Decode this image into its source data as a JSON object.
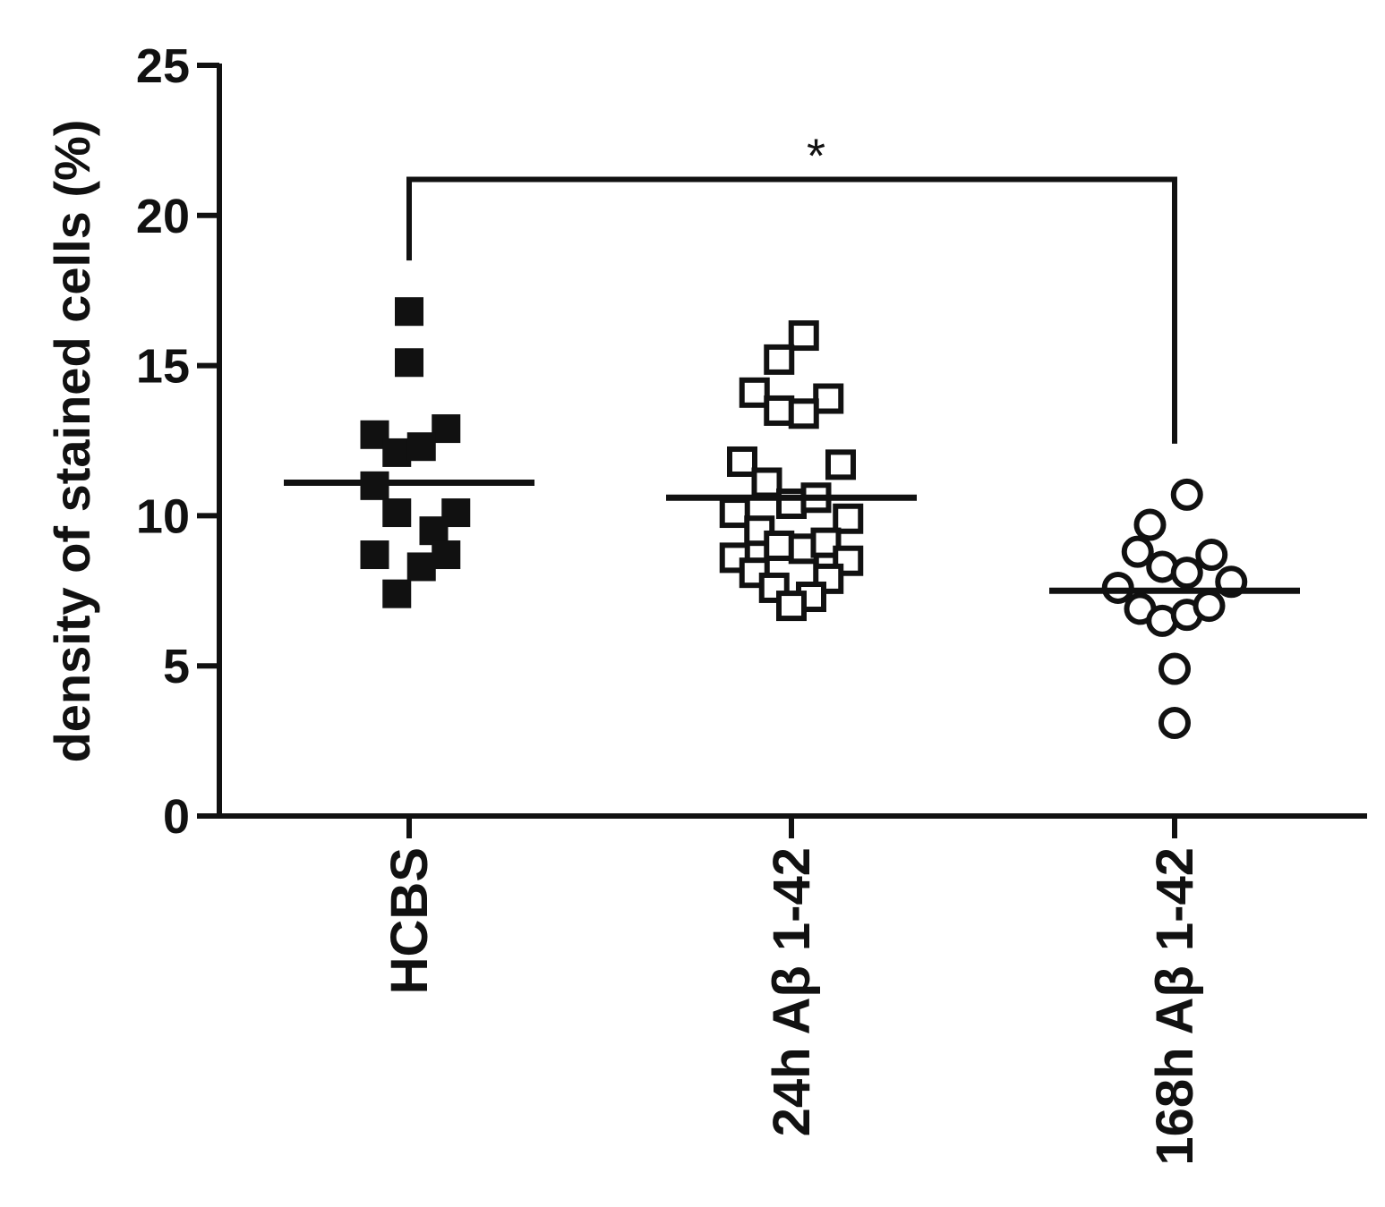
{
  "chart_data": {
    "type": "scatter",
    "title": "",
    "xlabel": "",
    "ylabel": "density of stained cells (%)",
    "ylim": [
      0,
      25
    ],
    "yticks": [
      "0",
      "5",
      "10",
      "15",
      "20",
      "25"
    ],
    "categories": [
      "HCBS",
      "24h Aβ 1-42",
      "168h Aβ 1-42"
    ],
    "series": [
      {
        "category": "HCBS",
        "marker": "filled-square",
        "mean": 11.1,
        "points": [
          {
            "offset": 0.0,
            "y": 16.8
          },
          {
            "offset": 0.0,
            "y": 15.1
          },
          {
            "offset": -0.7,
            "y": 12.7
          },
          {
            "offset": 0.75,
            "y": 12.9
          },
          {
            "offset": -0.25,
            "y": 12.1
          },
          {
            "offset": 0.25,
            "y": 12.3
          },
          {
            "offset": -0.7,
            "y": 11.0
          },
          {
            "offset": -0.25,
            "y": 10.1
          },
          {
            "offset": 0.95,
            "y": 10.1
          },
          {
            "offset": 0.5,
            "y": 9.5
          },
          {
            "offset": -0.7,
            "y": 8.7
          },
          {
            "offset": 0.25,
            "y": 8.3
          },
          {
            "offset": 0.75,
            "y": 8.7
          },
          {
            "offset": -0.25,
            "y": 7.4
          }
        ]
      },
      {
        "category": "24h Aβ 1-42",
        "marker": "open-square",
        "mean": 10.6,
        "points": [
          {
            "offset": 0.25,
            "y": 16.0
          },
          {
            "offset": -0.25,
            "y": 15.2
          },
          {
            "offset": -0.75,
            "y": 14.1
          },
          {
            "offset": 0.75,
            "y": 13.9
          },
          {
            "offset": -0.25,
            "y": 13.5
          },
          {
            "offset": 0.25,
            "y": 13.4
          },
          {
            "offset": -1.0,
            "y": 11.8
          },
          {
            "offset": 1.0,
            "y": 11.7
          },
          {
            "offset": -0.5,
            "y": 11.1
          },
          {
            "offset": 0.0,
            "y": 10.4
          },
          {
            "offset": 0.5,
            "y": 10.6
          },
          {
            "offset": -1.15,
            "y": 10.1
          },
          {
            "offset": 1.15,
            "y": 9.9
          },
          {
            "offset": -0.65,
            "y": 9.5
          },
          {
            "offset": -0.25,
            "y": 9.0
          },
          {
            "offset": 0.25,
            "y": 8.9
          },
          {
            "offset": 0.7,
            "y": 9.1
          },
          {
            "offset": -1.15,
            "y": 8.6
          },
          {
            "offset": 1.15,
            "y": 8.5
          },
          {
            "offset": -0.75,
            "y": 8.1
          },
          {
            "offset": 0.75,
            "y": 7.9
          },
          {
            "offset": -0.35,
            "y": 7.6
          },
          {
            "offset": 0.4,
            "y": 7.3
          },
          {
            "offset": 0.0,
            "y": 7.0
          }
        ]
      },
      {
        "category": "168h Aβ 1-42",
        "marker": "open-circle",
        "mean": 7.5,
        "points": [
          {
            "offset": 0.25,
            "y": 10.7
          },
          {
            "offset": -0.5,
            "y": 9.7
          },
          {
            "offset": -0.75,
            "y": 8.8
          },
          {
            "offset": 0.75,
            "y": 8.7
          },
          {
            "offset": -0.25,
            "y": 8.3
          },
          {
            "offset": 0.25,
            "y": 8.1
          },
          {
            "offset": -1.15,
            "y": 7.6
          },
          {
            "offset": 1.15,
            "y": 7.8
          },
          {
            "offset": -0.7,
            "y": 6.9
          },
          {
            "offset": -0.25,
            "y": 6.5
          },
          {
            "offset": 0.25,
            "y": 6.7
          },
          {
            "offset": 0.7,
            "y": 7.0
          },
          {
            "offset": 0.0,
            "y": 4.9
          },
          {
            "offset": 0.0,
            "y": 3.1
          }
        ]
      }
    ],
    "significance": {
      "from": "HCBS",
      "to": "168h Aβ 1-42",
      "label": "*"
    },
    "grid": false,
    "legend": "none"
  }
}
